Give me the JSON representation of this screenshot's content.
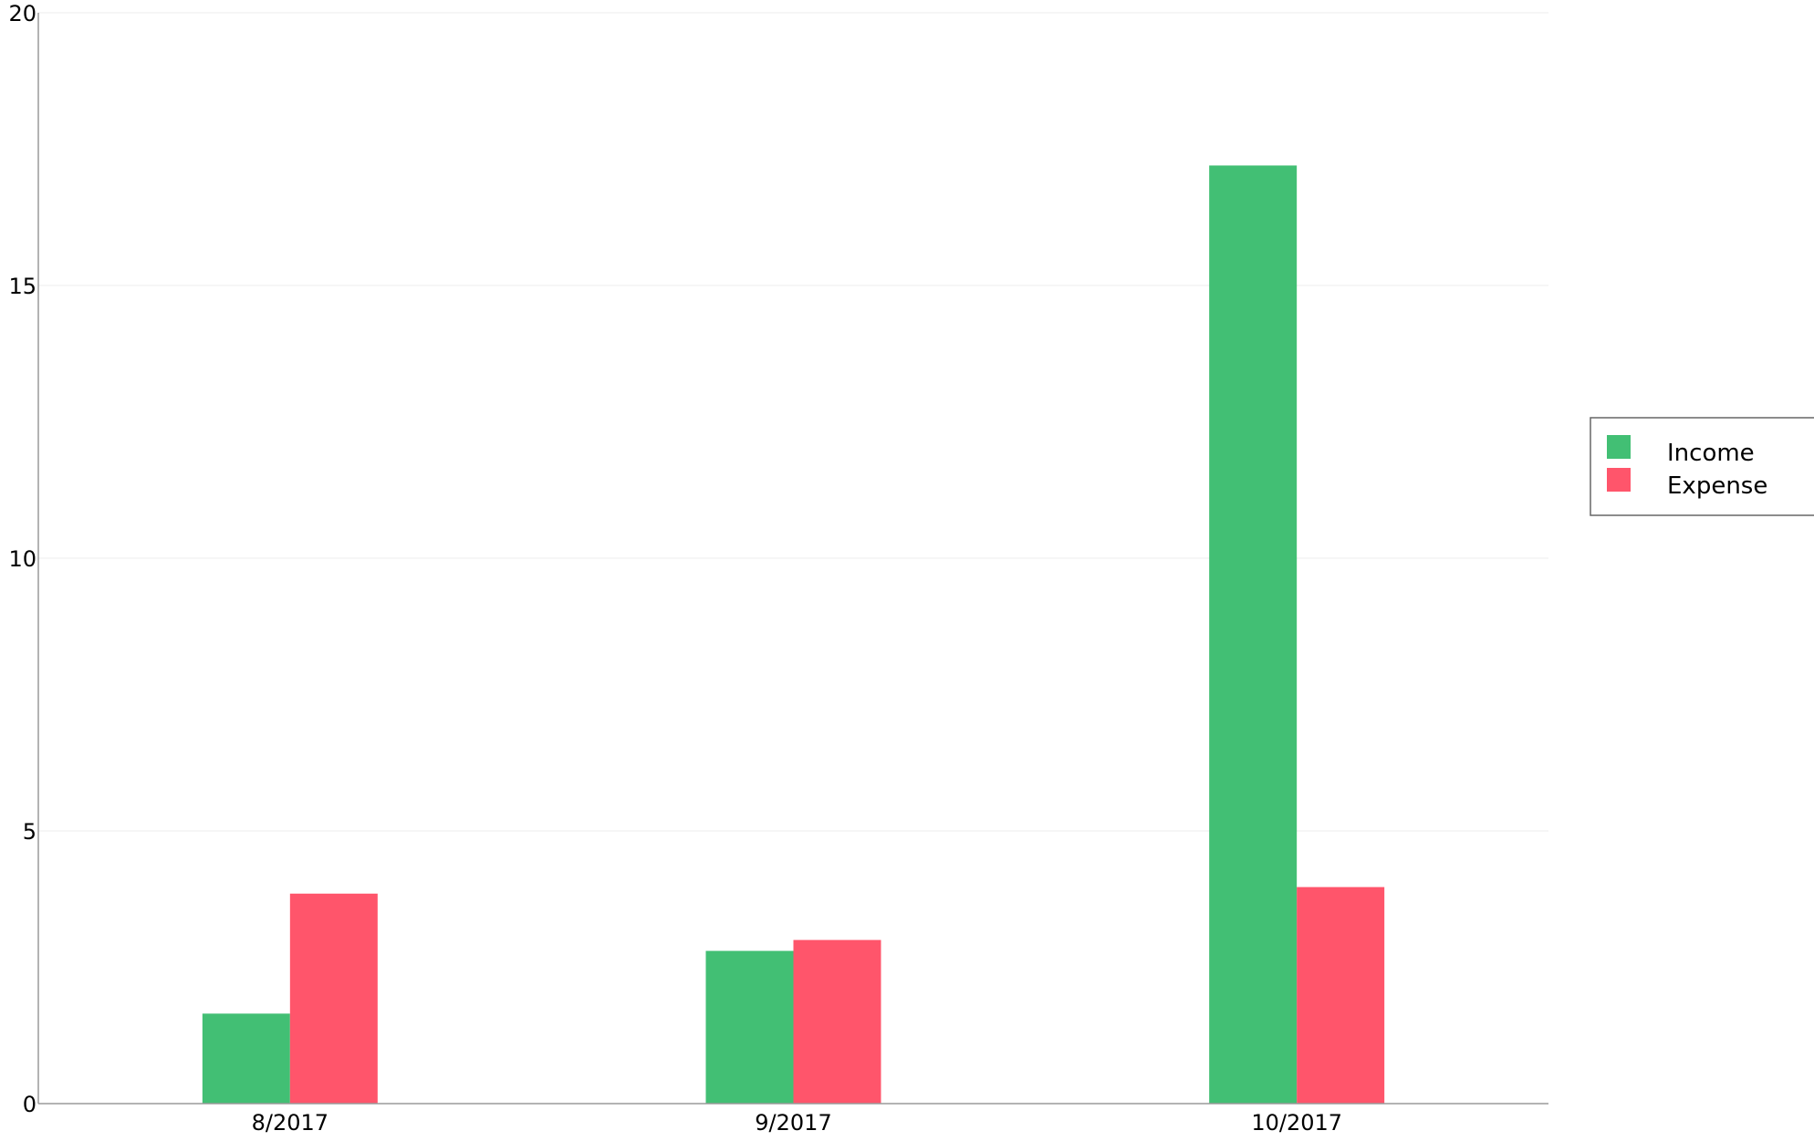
{
  "chart_data": {
    "type": "bar",
    "categories": [
      "8/2017",
      "9/2017",
      "10/2017"
    ],
    "series": [
      {
        "name": "Income",
        "color": "#42BF74",
        "values": [
          1.65,
          2.8,
          17.2
        ]
      },
      {
        "name": "Expense",
        "color": "#FF556B",
        "values": [
          3.85,
          3.0,
          3.97
        ]
      }
    ],
    "ylim": [
      0,
      20
    ],
    "yticks": [
      "0",
      "5",
      "10",
      "15",
      "20"
    ],
    "grid": true,
    "legend_position": "right"
  }
}
